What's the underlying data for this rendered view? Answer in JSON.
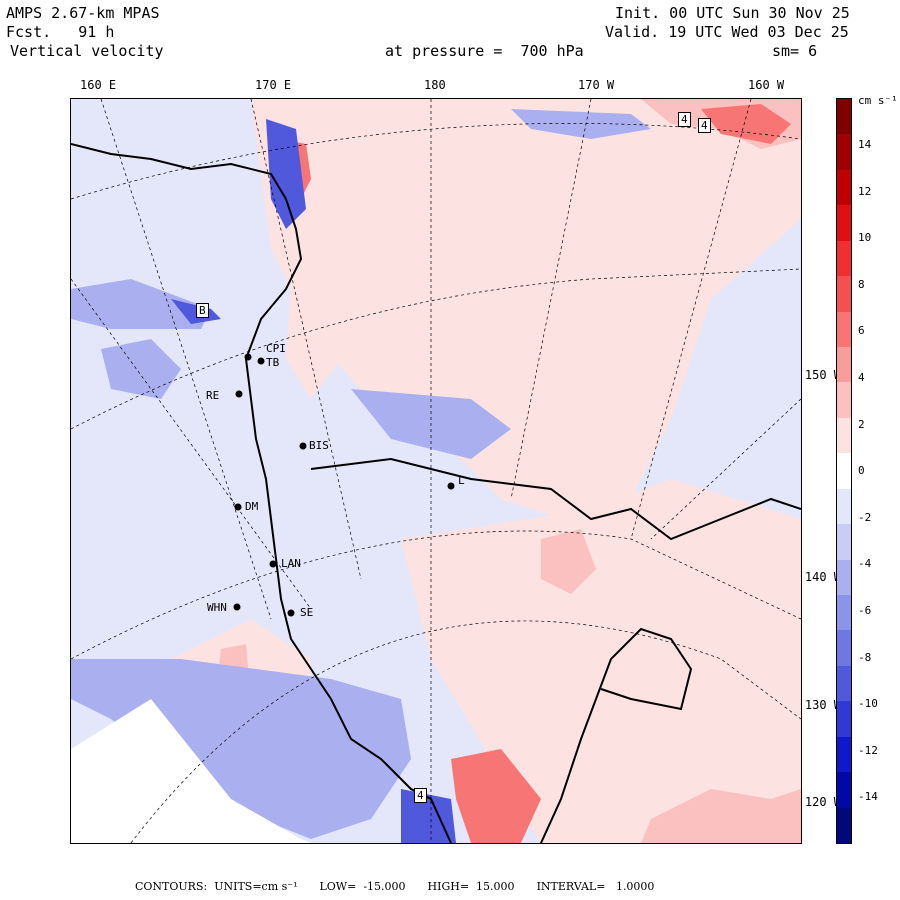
{
  "header": {
    "model": "AMPS 2.67-km MPAS",
    "forecast": "Fcst.   91 h",
    "variable": "Vertical velocity",
    "init": "Init. 00 UTC Sun 30 Nov 25",
    "valid": "Valid. 19 UTC Wed 03 Dec 25",
    "pressure": "at pressure =  700 hPa",
    "smoothing": "sm= 6"
  },
  "longitude_labels": [
    "160 E",
    "170 E",
    "180",
    "170 W",
    "160 W"
  ],
  "latitude_labels": [
    "150 W",
    "140 W",
    "130 W",
    "120 W"
  ],
  "colorbar": {
    "units": "cm s⁻¹",
    "labels": [
      "14",
      "12",
      "10",
      "8",
      "6",
      "4",
      "2",
      "0",
      "-2",
      "-4",
      "-6",
      "-8",
      "-10",
      "-12",
      "-14"
    ],
    "colors": [
      "#800000",
      "#a00000",
      "#c00000",
      "#e01010",
      "#f03030",
      "#f55050",
      "#f77575",
      "#f99c9c",
      "#fbc0c0",
      "#fde2e2",
      "#ffffff",
      "#e4e6fa",
      "#c9cdf5",
      "#aab0ef",
      "#8c94e9",
      "#6e77e2",
      "#5058dc",
      "#3038d6",
      "#1018cc",
      "#0008a8",
      "#00087a"
    ]
  },
  "stations": [
    "CPI",
    "TB",
    "RE",
    "BIS",
    "L",
    "DM",
    "LAN",
    "WHN",
    "SE"
  ],
  "box_labels": [
    "B",
    "4",
    "4",
    "4"
  ],
  "footer": {
    "contours": "CONTOURS:  UNITS=cm s⁻¹",
    "low": "LOW=  -15.000",
    "high": "HIGH=  15.000",
    "interval": "INTERVAL=   1.0000"
  }
}
